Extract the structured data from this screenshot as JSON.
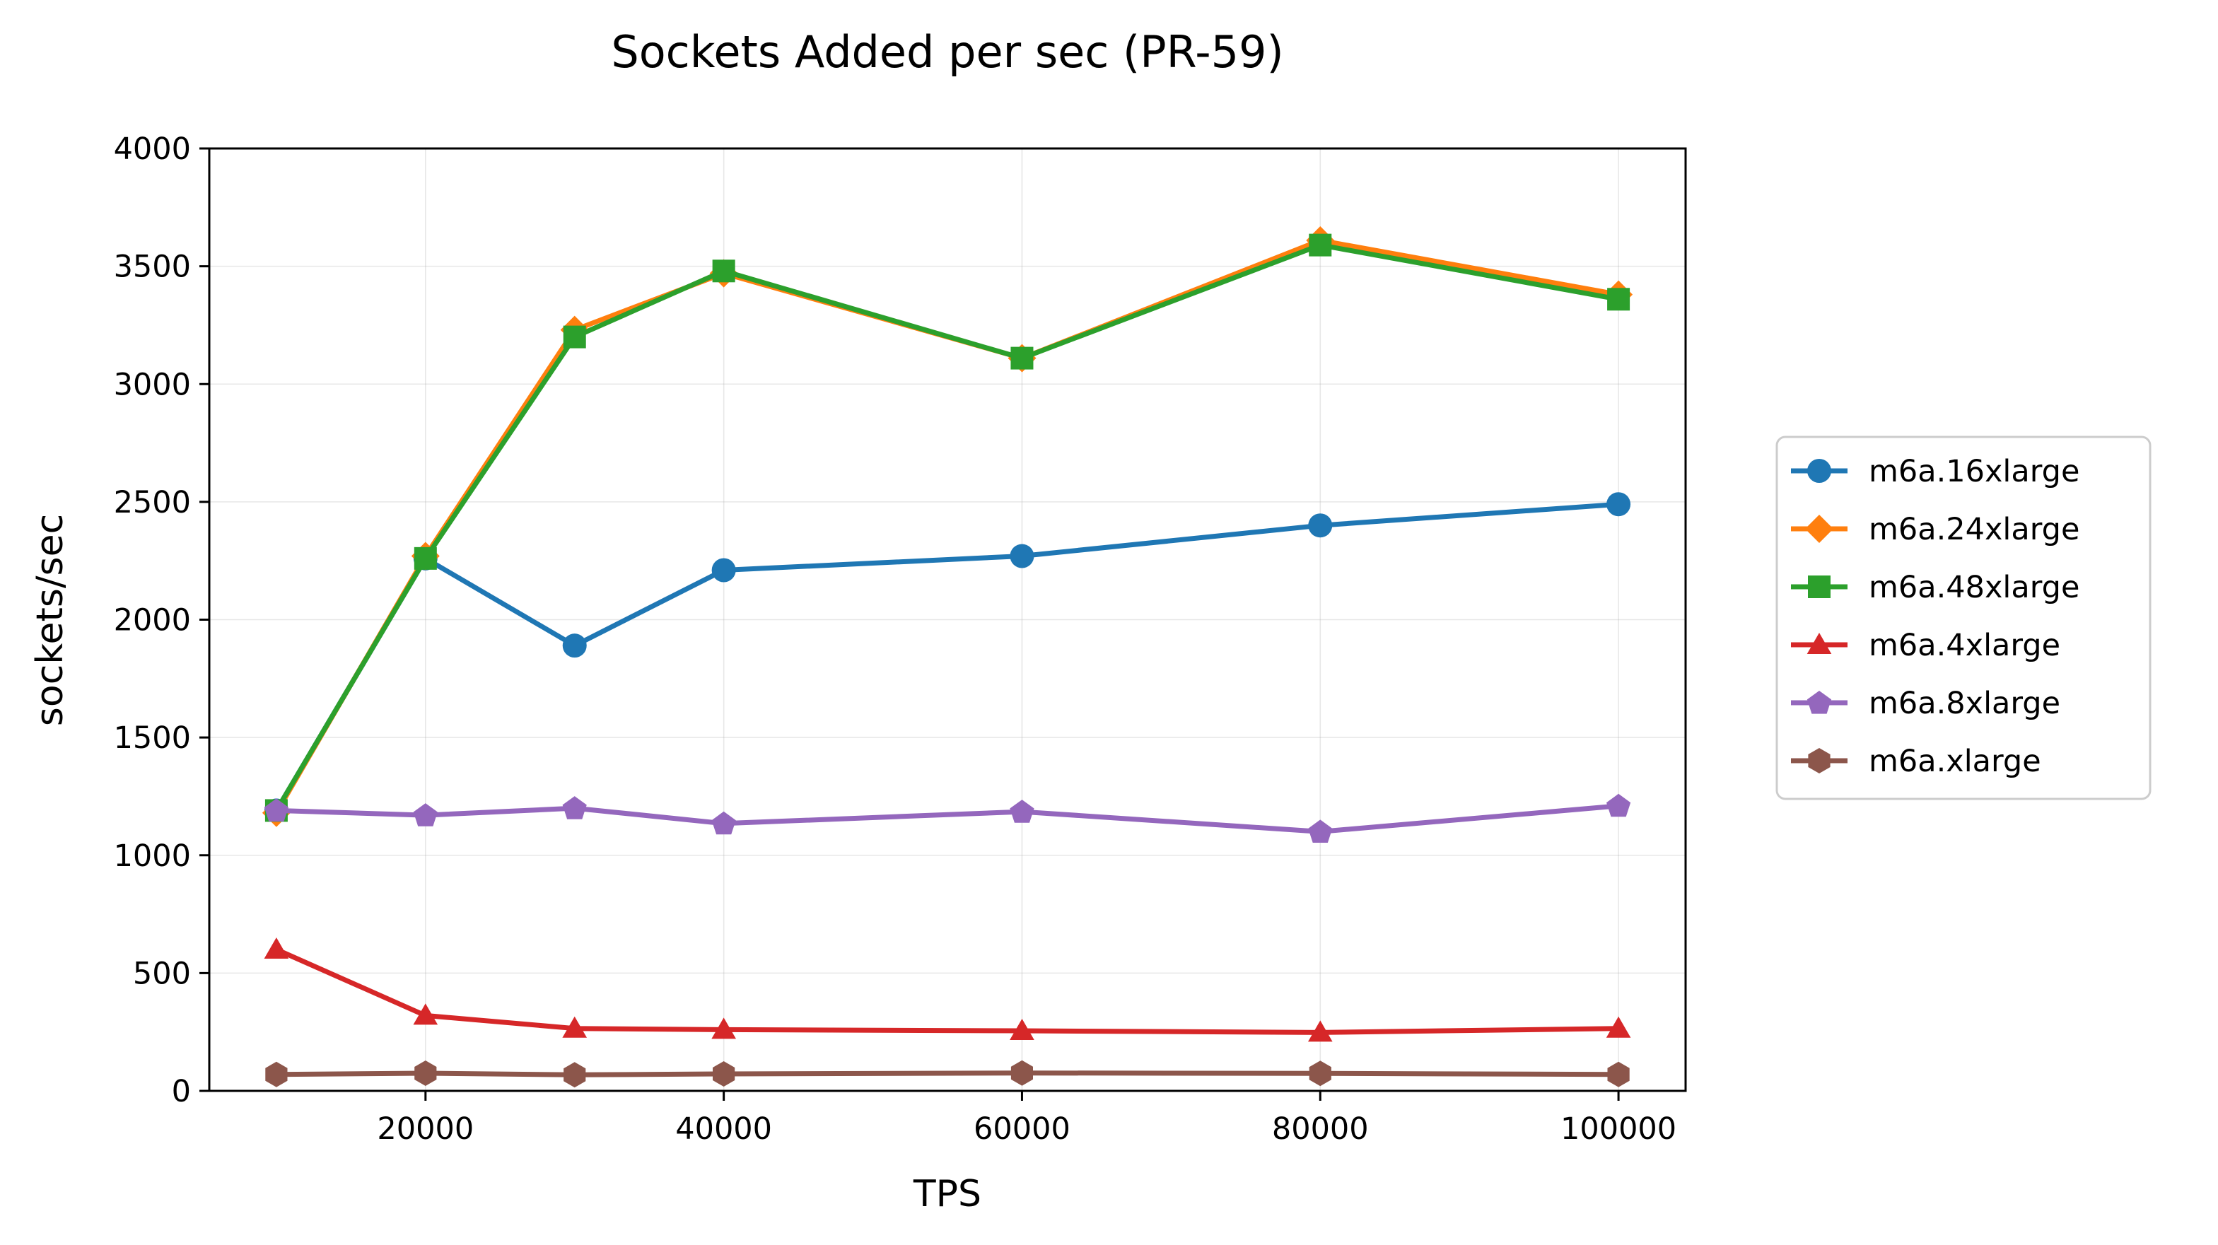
{
  "chart_data": {
    "type": "line",
    "title": "Sockets Added per sec (PR-59)",
    "xlabel": "TPS",
    "ylabel": "sockets/sec",
    "xlim": [
      5500,
      104500
    ],
    "ylim": [
      0,
      4000
    ],
    "x_ticks": [
      20000,
      40000,
      60000,
      80000,
      100000
    ],
    "x_tick_labels": [
      "20000",
      "40000",
      "60000",
      "80000",
      "100000"
    ],
    "y_ticks": [
      0,
      500,
      1000,
      1500,
      2000,
      2500,
      3000,
      3500,
      4000
    ],
    "y_tick_labels": [
      "0",
      "500",
      "1000",
      "1500",
      "2000",
      "2500",
      "3000",
      "3500",
      "4000"
    ],
    "grid": true,
    "legend_position": "right, outside plot area",
    "x": [
      10000,
      20000,
      30000,
      40000,
      60000,
      80000,
      100000
    ],
    "series": [
      {
        "name": "m6a.16xlarge",
        "color": "#1f77b4",
        "marker": "circle",
        "values": [
          1190,
          2260,
          1890,
          2210,
          2270,
          2400,
          2490
        ]
      },
      {
        "name": "m6a.24xlarge",
        "color": "#ff7f0e",
        "marker": "diamond",
        "values": [
          1180,
          2270,
          3230,
          3470,
          3110,
          3610,
          3380
        ]
      },
      {
        "name": "m6a.48xlarge",
        "color": "#2ca02c",
        "marker": "square",
        "values": [
          1190,
          2260,
          3200,
          3480,
          3110,
          3590,
          3360
        ]
      },
      {
        "name": "m6a.4xlarge",
        "color": "#d62728",
        "marker": "triangle",
        "values": [
          600,
          320,
          265,
          260,
          255,
          248,
          265
        ]
      },
      {
        "name": "m6a.8xlarge",
        "color": "#9467bd",
        "marker": "pentagon",
        "values": [
          1190,
          1170,
          1200,
          1135,
          1185,
          1100,
          1210
        ]
      },
      {
        "name": "m6a.xlarge",
        "color": "#8c564b",
        "marker": "hexagon",
        "values": [
          70,
          75,
          68,
          72,
          76,
          74,
          70
        ]
      }
    ]
  }
}
